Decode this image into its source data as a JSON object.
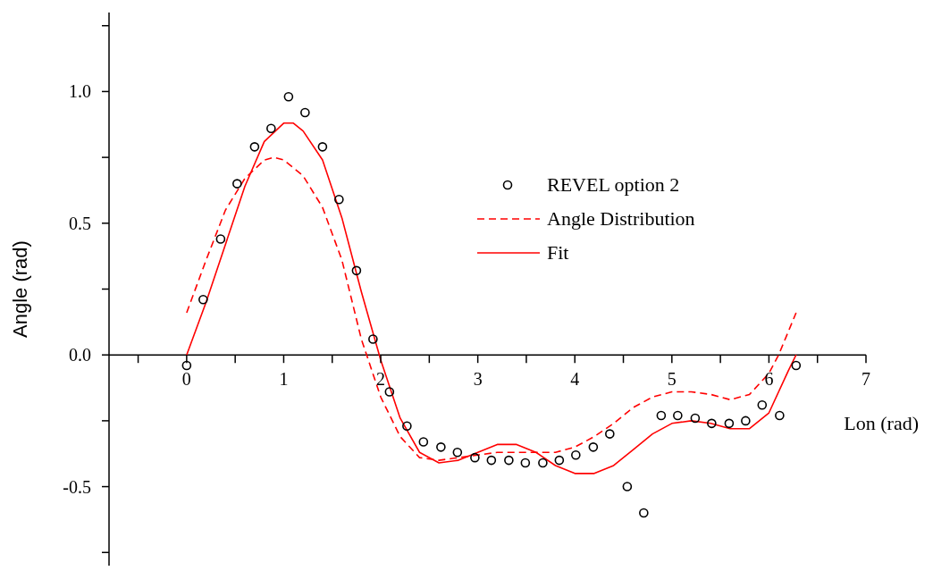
{
  "chart_data": {
    "type": "line",
    "xlabel": "Lon (rad)",
    "ylabel": "Angle (rad)",
    "xlim": [
      -0.8,
      7
    ],
    "ylim": [
      -0.8,
      1.3
    ],
    "xticks": [
      {
        "value": -0.5,
        "label": null
      },
      0,
      {
        "value": 0.5,
        "label": null
      },
      1,
      {
        "value": 1.5,
        "label": null
      },
      2,
      {
        "value": 2.5,
        "label": null
      },
      3,
      {
        "value": 3.5,
        "label": null
      },
      4,
      {
        "value": 4.5,
        "label": null
      },
      5,
      {
        "value": 5.5,
        "label": null
      },
      6,
      {
        "value": 6.5,
        "label": null
      },
      7
    ],
    "yticks": [
      {
        "value": -0.75,
        "label": null
      },
      {
        "value": -0.5,
        "label": "-0.5"
      },
      {
        "value": -0.25,
        "label": null
      },
      {
        "value": 0,
        "label": "0.0"
      },
      {
        "value": 0.25,
        "label": null
      },
      {
        "value": 0.5,
        "label": "0.5"
      },
      {
        "value": 0.75,
        "label": null
      },
      {
        "value": 1,
        "label": "1.0"
      },
      {
        "value": 1.25,
        "label": null
      }
    ],
    "grid": false,
    "legend": "top right",
    "series": [
      {
        "name": "REVEL option 2",
        "type": "scatter",
        "marker": "circle",
        "color": "#000000",
        "x": [
          0,
          0.17,
          0.35,
          0.52,
          0.7,
          0.87,
          1.05,
          1.22,
          1.4,
          1.57,
          1.75,
          1.92,
          2.09,
          2.27,
          2.44,
          2.62,
          2.79,
          2.97,
          3.14,
          3.32,
          3.49,
          3.67,
          3.84,
          4.01,
          4.19,
          4.36,
          4.54,
          4.71,
          4.89,
          5.06,
          5.24,
          5.41,
          5.59,
          5.76,
          5.93,
          6.11,
          6.28
        ],
        "values": [
          -0.04,
          0.21,
          0.44,
          0.65,
          0.79,
          0.86,
          0.98,
          0.92,
          0.79,
          0.59,
          0.32,
          0.06,
          -0.14,
          -0.27,
          -0.33,
          -0.35,
          -0.37,
          -0.39,
          -0.4,
          -0.4,
          -0.41,
          -0.41,
          -0.4,
          -0.38,
          -0.35,
          -0.3,
          -0.5,
          -0.6,
          -0.23,
          -0.23,
          -0.24,
          -0.26,
          -0.26,
          -0.25,
          -0.19,
          -0.23,
          -0.04
        ]
      },
      {
        "name": "Angle Distribution",
        "line_style": "dashed",
        "color": "#ff0000",
        "x": [
          0,
          0.2,
          0.4,
          0.6,
          0.8,
          0.9,
          1,
          1.2,
          1.4,
          1.6,
          1.8,
          2,
          2.2,
          2.4,
          2.6,
          2.8,
          3,
          3.2,
          3.4,
          3.6,
          3.8,
          4,
          4.2,
          4.4,
          4.6,
          4.8,
          5,
          5.2,
          5.4,
          5.6,
          5.8,
          6,
          6.1,
          6.28
        ],
        "values": [
          0.16,
          0.36,
          0.55,
          0.67,
          0.74,
          0.75,
          0.74,
          0.68,
          0.56,
          0.36,
          0.06,
          -0.16,
          -0.31,
          -0.39,
          -0.4,
          -0.39,
          -0.38,
          -0.37,
          -0.37,
          -0.37,
          -0.37,
          -0.35,
          -0.31,
          -0.26,
          -0.2,
          -0.16,
          -0.14,
          -0.14,
          -0.15,
          -0.17,
          -0.15,
          -0.07,
          0,
          0.16
        ]
      },
      {
        "name": "Fit",
        "line_style": "solid",
        "color": "#ff0000",
        "x": [
          0,
          0.2,
          0.4,
          0.6,
          0.8,
          1,
          1.1,
          1.2,
          1.4,
          1.6,
          1.8,
          2,
          2.2,
          2.4,
          2.6,
          2.8,
          3,
          3.2,
          3.4,
          3.6,
          3.8,
          4,
          4.2,
          4.4,
          4.6,
          4.8,
          5,
          5.2,
          5.4,
          5.6,
          5.8,
          6,
          6.2,
          6.28
        ],
        "values": [
          0,
          0.2,
          0.42,
          0.64,
          0.81,
          0.88,
          0.88,
          0.85,
          0.74,
          0.52,
          0.24,
          -0.02,
          -0.24,
          -0.37,
          -0.41,
          -0.4,
          -0.37,
          -0.34,
          -0.34,
          -0.37,
          -0.42,
          -0.45,
          -0.45,
          -0.42,
          -0.36,
          -0.3,
          -0.26,
          -0.25,
          -0.26,
          -0.28,
          -0.28,
          -0.22,
          -0.06,
          0
        ]
      }
    ]
  }
}
